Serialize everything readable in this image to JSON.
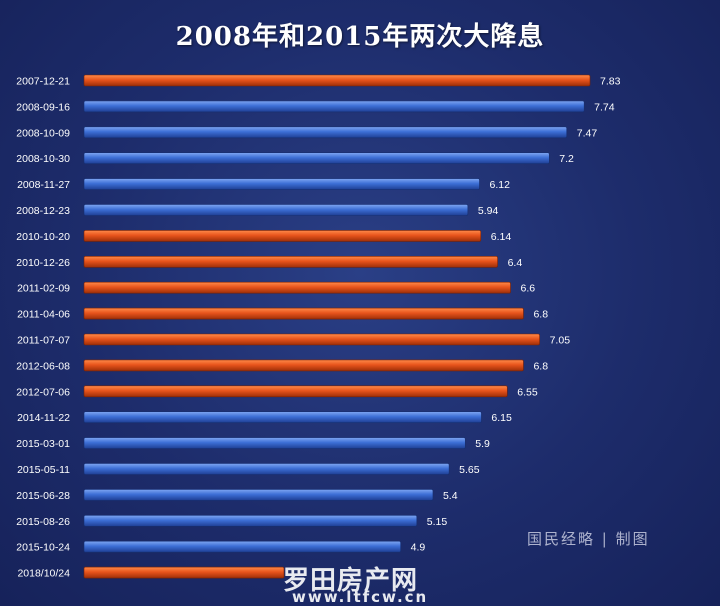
{
  "chart_data": {
    "type": "bar",
    "orientation": "horizontal",
    "title": "2008年和2015年两次大降息",
    "categories": [
      "2007-12-21",
      "2008-09-16",
      "2008-10-09",
      "2008-10-30",
      "2008-11-27",
      "2008-12-23",
      "2010-10-20",
      "2010-12-26",
      "2011-02-09",
      "2011-04-06",
      "2011-07-07",
      "2012-06-08",
      "2012-07-06",
      "2014-11-22",
      "2015-03-01",
      "2015-05-11",
      "2015-06-28",
      "2015-08-26",
      "2015-10-24",
      "2018/10/24"
    ],
    "values": [
      7.83,
      7.74,
      7.47,
      7.2,
      6.12,
      5.94,
      6.14,
      6.4,
      6.6,
      6.8,
      7.05,
      6.8,
      6.55,
      6.15,
      5.9,
      5.65,
      5.4,
      5.15,
      4.9,
      null
    ],
    "value_labels": [
      "7.83",
      "7.74",
      "7.47",
      "7.2",
      "6.12",
      "5.94",
      "6.14",
      "6.4",
      "6.6",
      "6.8",
      "7.05",
      "6.8",
      "6.55",
      "6.15",
      "5.9",
      "5.65",
      "5.4",
      "5.15",
      "4.9",
      ""
    ],
    "bar_colors": [
      "orange",
      "blue",
      "blue",
      "blue",
      "blue",
      "blue",
      "orange",
      "orange",
      "orange",
      "orange",
      "orange",
      "orange",
      "orange",
      "blue",
      "blue",
      "blue",
      "blue",
      "blue",
      "blue",
      "orange"
    ],
    "colors": {
      "orange": "#e8541c",
      "blue": "#3d6fd6",
      "background": "#1d2c6b"
    },
    "xlim": [
      0,
      7.83
    ],
    "grid": false,
    "legend": "none"
  },
  "credit": "国民经略 | 制图",
  "watermark": {
    "name": "罗田房产网",
    "url": "www.ltfcw.cn"
  }
}
